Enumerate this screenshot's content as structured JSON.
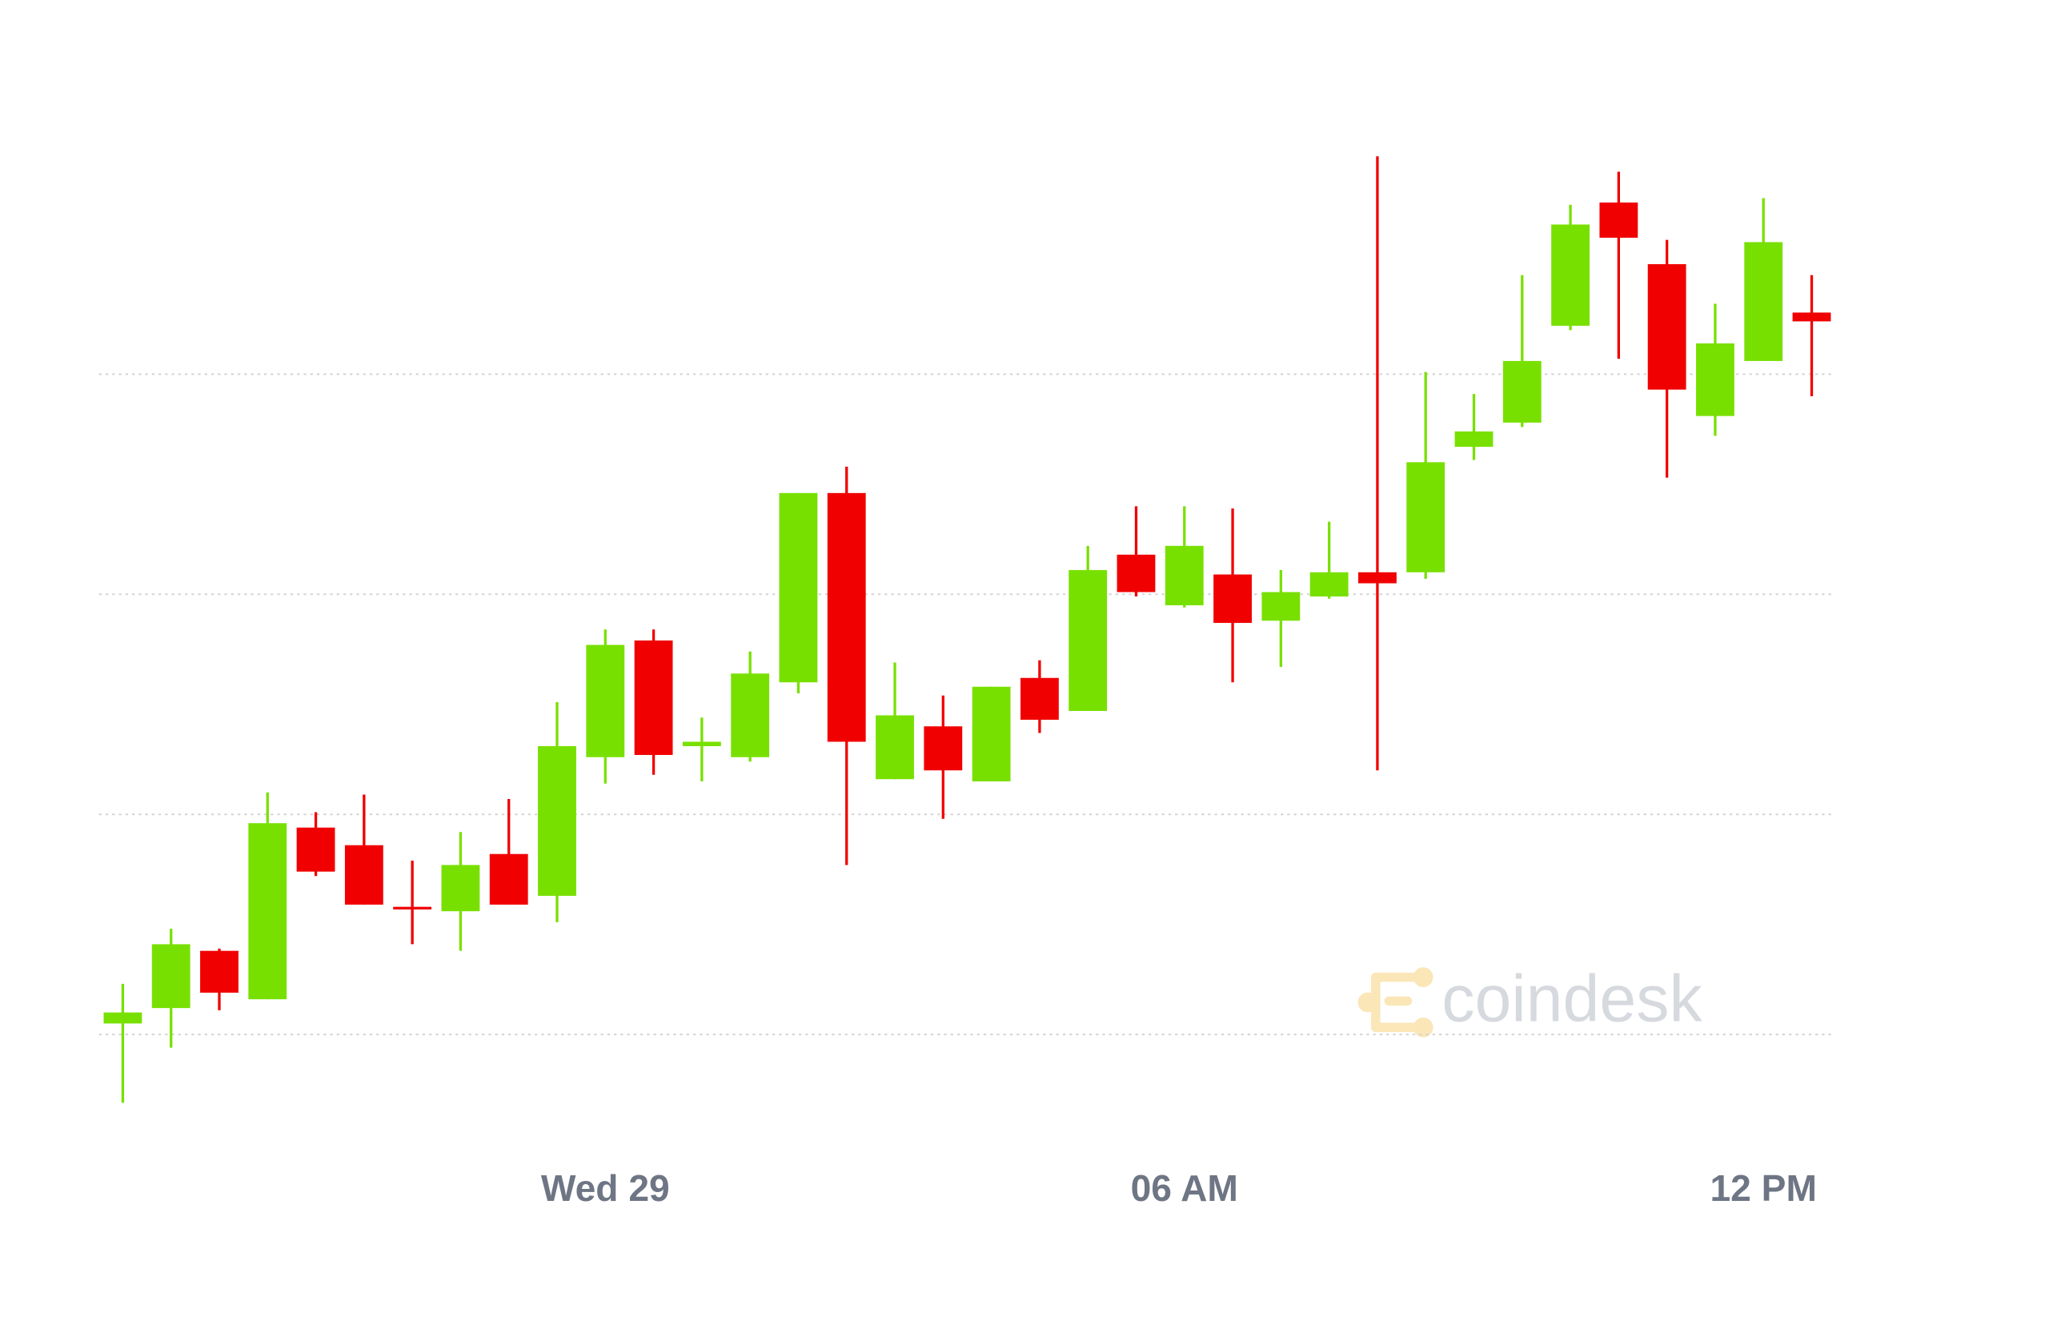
{
  "chart_data": {
    "type": "candlestick",
    "categories": [
      null,
      null,
      null,
      null,
      null,
      null,
      null,
      null,
      null,
      null,
      "Wed 29",
      null,
      null,
      null,
      null,
      null,
      null,
      null,
      null,
      null,
      null,
      null,
      "06 AM",
      null,
      null,
      null,
      null,
      null,
      null,
      null,
      null,
      null,
      null,
      null,
      "12 PM",
      null
    ],
    "open": [
      0.05,
      0.12,
      0.38,
      0.16,
      0.94,
      0.86,
      0.58,
      0.56,
      0.82,
      0.63,
      1.26,
      1.79,
      1.31,
      1.26,
      1.6,
      2.46,
      1.16,
      1.4,
      1.15,
      1.62,
      1.47,
      2.18,
      1.95,
      2.09,
      1.88,
      1.99,
      2.1,
      2.1,
      2.67,
      2.78,
      3.22,
      3.78,
      3.5,
      2.81,
      3.06,
      3.28
    ],
    "high": [
      0.23,
      0.48,
      0.39,
      1.1,
      1.01,
      1.09,
      0.79,
      0.92,
      1.07,
      1.51,
      1.84,
      1.84,
      1.44,
      1.74,
      2.46,
      2.58,
      1.69,
      1.54,
      1.58,
      1.7,
      2.22,
      2.4,
      2.4,
      2.39,
      2.11,
      2.33,
      3.99,
      3.01,
      2.91,
      3.45,
      3.77,
      3.92,
      3.61,
      3.32,
      3.8,
      3.45
    ],
    "low": [
      -0.31,
      -0.06,
      0.11,
      0.16,
      0.72,
      0.59,
      0.41,
      0.38,
      0.59,
      0.51,
      1.14,
      1.18,
      1.15,
      1.24,
      1.55,
      0.77,
      1.16,
      0.98,
      1.15,
      1.37,
      1.47,
      1.99,
      1.94,
      1.6,
      1.67,
      1.98,
      1.2,
      2.07,
      2.61,
      2.76,
      3.2,
      3.07,
      2.53,
      2.72,
      3.06,
      2.9
    ],
    "close": [
      0.1,
      0.41,
      0.19,
      0.96,
      0.74,
      0.59,
      0.58,
      0.77,
      0.59,
      1.31,
      1.77,
      1.27,
      1.33,
      1.64,
      2.46,
      1.33,
      1.45,
      1.2,
      1.58,
      1.43,
      2.11,
      2.01,
      2.22,
      1.87,
      2.01,
      2.1,
      2.05,
      2.6,
      2.74,
      3.06,
      3.68,
      3.62,
      2.93,
      3.14,
      3.6,
      3.24
    ],
    "up_color": "#78e000",
    "down_color": "#f00000",
    "ylim": [
      -0.4,
      4.1
    ],
    "yticks": [
      0,
      1,
      2,
      3
    ],
    "grid": true,
    "watermark": "coindesk"
  }
}
